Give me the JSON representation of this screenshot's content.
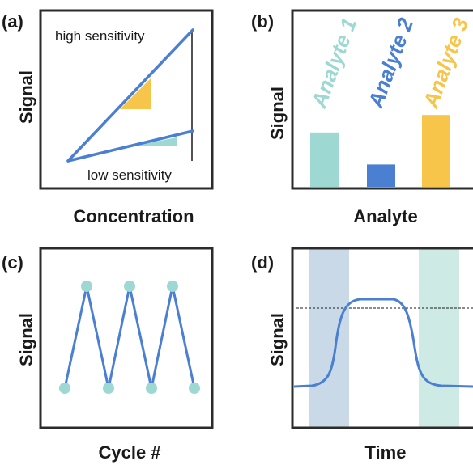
{
  "colors": {
    "blue": "#4a7fd1",
    "teal": "#9ed8d2",
    "gold": "#f8c54b",
    "frame": "#2b2b2b",
    "band_blue": "#c9d9e8",
    "band_teal": "#cdeae5"
  },
  "panels": {
    "a": {
      "tag": "(a)",
      "ylabel": "Signal",
      "xlabel": "Concentration",
      "high_label": "high sensitivity",
      "low_label": "low sensitivity"
    },
    "b": {
      "tag": "(b)",
      "ylabel": "Signal",
      "xlabel": "Analyte",
      "bars": [
        {
          "label": "Analyte 1",
          "value": 0.56,
          "color": "#9ed8d2"
        },
        {
          "label": "Analyte 2",
          "value": 0.23,
          "color": "#4a7fd1"
        },
        {
          "label": "Analyte 3",
          "value": 0.74,
          "color": "#f8c54b"
        }
      ]
    },
    "c": {
      "tag": "(c)",
      "ylabel": "Signal",
      "xlabel": "Cycle #"
    },
    "d": {
      "tag": "(d)",
      "ylabel": "Signal",
      "xlabel": "Time"
    }
  }
}
